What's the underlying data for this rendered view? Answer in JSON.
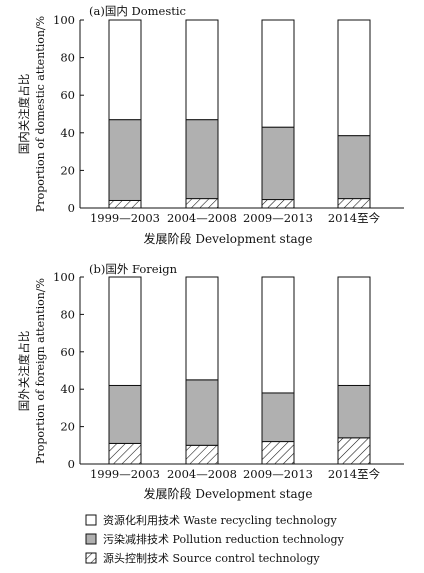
{
  "colors": {
    "waste": "#ffffff",
    "pollution": "#b0b0b0",
    "source": "#ffffff",
    "axis": "#111111"
  },
  "legend": [
    {
      "label": "资源化利用技术 Waste recycling technology",
      "fill": "waste"
    },
    {
      "label": "污染减排技术 Pollution reduction technology",
      "fill": "pollution"
    },
    {
      "label": "源头控制技术 Source control technology",
      "fill": "hatch"
    }
  ],
  "chart_data": [
    {
      "type": "bar",
      "stacked": true,
      "title": "(a)国内 Domestic",
      "xlabel": "发展阶段 Development stage",
      "ylabel_cn": "国内关注度占比",
      "ylabel_en": "Proportion of domestic attention/%",
      "ylim": [
        0,
        100
      ],
      "yticks": [
        0,
        20,
        40,
        60,
        80,
        100
      ],
      "categories": [
        "1999—2003",
        "2004—2008",
        "2009—2013",
        "2014至今"
      ],
      "series": [
        {
          "name": "源头控制技术 Source control technology",
          "values": [
            4,
            5,
            4.5,
            5
          ]
        },
        {
          "name": "污染减排技术 Pollution reduction technology",
          "values": [
            43,
            42,
            38.5,
            33.5
          ]
        },
        {
          "name": "资源化利用技术 Waste recycling technology",
          "values": [
            53,
            53,
            57,
            61.5
          ]
        }
      ]
    },
    {
      "type": "bar",
      "stacked": true,
      "title": "(b)国外 Foreign",
      "xlabel": "发展阶段 Development stage",
      "ylabel_cn": "国外关注度占比",
      "ylabel_en": "Proportion of foreign attention/%",
      "ylim": [
        0,
        100
      ],
      "yticks": [
        0,
        20,
        40,
        60,
        80,
        100
      ],
      "categories": [
        "1999—2003",
        "2004—2008",
        "2009—2013",
        "2014至今"
      ],
      "series": [
        {
          "name": "源头控制技术 Source control technology",
          "values": [
            11,
            10,
            12,
            14
          ]
        },
        {
          "name": "污染减排技术 Pollution reduction technology",
          "values": [
            31,
            35,
            26,
            28
          ]
        },
        {
          "name": "资源化利用技术 Waste recycling technology",
          "values": [
            58,
            55,
            62,
            58
          ]
        }
      ]
    }
  ]
}
